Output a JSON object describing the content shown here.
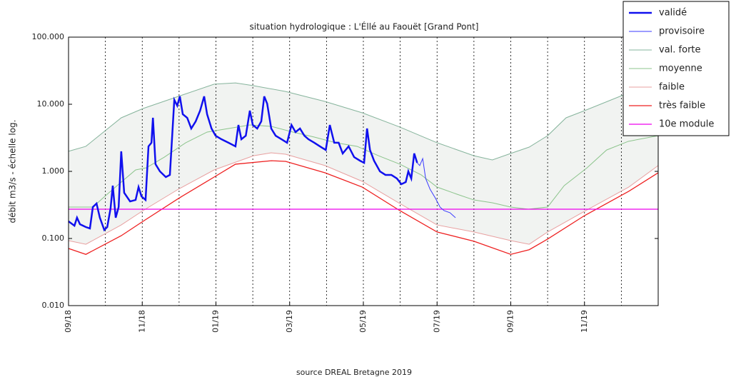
{
  "chart_data": {
    "type": "line",
    "title": "situation hydrologique : L'Éllé au Faouët [Grand Pont]",
    "ylabel": "débit m3/s - échelle log.",
    "source": "source DREAL Bretagne 2019",
    "log_y": true,
    "ylim": [
      0.01,
      100
    ],
    "yticks": [
      {
        "value": 0.01,
        "label": "0.010"
      },
      {
        "value": 0.1,
        "label": "0.100"
      },
      {
        "value": 1,
        "label": "1.000"
      },
      {
        "value": 10,
        "label": "10.000"
      },
      {
        "value": 100,
        "label": "100.000"
      }
    ],
    "xlim": [
      0,
      16
    ],
    "xticks": [
      {
        "value": 0,
        "label": "09/18"
      },
      {
        "value": 2,
        "label": "11/18"
      },
      {
        "value": 4,
        "label": "01/19"
      },
      {
        "value": 6,
        "label": "03/19"
      },
      {
        "value": 8,
        "label": "05/19"
      },
      {
        "value": 10,
        "label": "07/19"
      },
      {
        "value": 12,
        "label": "09/19"
      },
      {
        "value": 14,
        "label": "11/19"
      }
    ],
    "xgrid": [
      1,
      2,
      3,
      4,
      5,
      6,
      7,
      8,
      9,
      10,
      11,
      12,
      13,
      14,
      15
    ],
    "legend": "upper right",
    "series": [
      {
        "name": "validé",
        "color": "#1010ee",
        "width": 2.5,
        "x": [
          0,
          0.16,
          0.23,
          0.31,
          0.47,
          0.58,
          0.66,
          0.76,
          0.85,
          0.97,
          1.05,
          1.14,
          1.2,
          1.28,
          1.36,
          1.43,
          1.51,
          1.67,
          1.82,
          1.9,
          1.98,
          2.09,
          2.17,
          2.25,
          2.29,
          2.36,
          2.48,
          2.64,
          2.75,
          2.87,
          2.95,
          3.02,
          3.1,
          3.22,
          3.33,
          3.45,
          3.57,
          3.68,
          3.76,
          3.88,
          3.99,
          4.15,
          4.34,
          4.53,
          4.61,
          4.69,
          4.81,
          4.92,
          5.0,
          5.12,
          5.23,
          5.31,
          5.39,
          5.5,
          5.62,
          5.78,
          5.93,
          6.05,
          6.16,
          6.28,
          6.4,
          6.51,
          6.67,
          6.82,
          6.98,
          7.09,
          7.21,
          7.33,
          7.44,
          7.6,
          7.75,
          7.91,
          8.02,
          8.1,
          8.18,
          8.29,
          8.45,
          8.6,
          8.76,
          8.91,
          9.03,
          9.15,
          9.22,
          9.3,
          9.38,
          9.46
        ],
        "values": [
          0.18,
          0.155,
          0.204,
          0.163,
          0.148,
          0.141,
          0.294,
          0.332,
          0.204,
          0.134,
          0.148,
          0.28,
          0.613,
          0.204,
          0.294,
          1.99,
          0.48,
          0.357,
          0.375,
          0.583,
          0.424,
          0.375,
          2.36,
          2.67,
          6.28,
          1.28,
          1.0,
          0.822,
          0.886,
          11.6,
          9.52,
          13.1,
          7.1,
          6.28,
          4.35,
          5.55,
          8.02,
          13.1,
          7.1,
          4.35,
          3.4,
          3.01,
          2.67,
          2.36,
          4.91,
          3.01,
          3.4,
          8.02,
          4.91,
          4.35,
          5.55,
          13.1,
          10.2,
          4.35,
          3.4,
          3.01,
          2.67,
          4.91,
          3.85,
          4.35,
          3.4,
          3.01,
          2.67,
          2.36,
          2.08,
          4.91,
          2.67,
          2.67,
          1.85,
          2.36,
          1.63,
          1.44,
          1.34,
          4.35,
          2.08,
          1.44,
          1.0,
          0.886,
          0.886,
          0.783,
          0.644,
          0.692,
          1.0,
          0.783,
          1.85,
          1.34
        ]
      },
      {
        "name": "provisoire",
        "color": "#3a3aff",
        "width": 1,
        "x": [
          9.46,
          9.53,
          9.61,
          9.69,
          9.81,
          9.96,
          10.08,
          10.19,
          10.35,
          10.5
        ],
        "values": [
          1.34,
          1.22,
          1.55,
          0.783,
          0.542,
          0.394,
          0.294,
          0.26,
          0.242,
          0.204
        ]
      },
      {
        "name": "val. forte",
        "color": "#86b49c",
        "width": 1,
        "x": [
          0,
          0.47,
          1.43,
          2.02,
          2.98,
          3.95,
          4.53,
          5.02,
          5.89,
          6.96,
          7.97,
          8.99,
          10.0,
          11.0,
          11.5,
          12.0,
          12.5,
          13.0,
          13.5,
          14.0,
          15.2,
          16.0
        ],
        "values": [
          1.99,
          2.36,
          6.28,
          8.63,
          13.1,
          19.9,
          20.8,
          18.9,
          15.5,
          11.0,
          7.46,
          4.57,
          2.67,
          1.71,
          1.48,
          1.85,
          2.3,
          3.4,
          6.28,
          8.02,
          14.8,
          19.9
        ]
      },
      {
        "name": "moyenne",
        "color": "#8cc48c",
        "width": 1,
        "x": [
          0,
          0.66,
          1.05,
          1.43,
          1.82,
          2.11,
          2.6,
          3.18,
          3.76,
          4.34,
          4.92,
          5.5,
          6.09,
          6.67,
          7.25,
          7.83,
          8.41,
          8.99,
          9.57,
          10.0,
          10.54,
          11.0,
          11.5,
          12.0,
          12.48,
          13.0,
          13.45,
          14.07,
          14.6,
          15.19,
          16.0
        ],
        "values": [
          0.294,
          0.294,
          0.457,
          0.692,
          1.05,
          1.13,
          1.63,
          2.67,
          3.85,
          4.35,
          4.91,
          4.68,
          3.85,
          3.24,
          2.67,
          2.36,
          1.71,
          1.28,
          0.886,
          0.583,
          0.457,
          0.375,
          0.34,
          0.294,
          0.273,
          0.294,
          0.613,
          1.13,
          2.08,
          2.8,
          3.4
        ]
      },
      {
        "name": "faible",
        "color": "#e8a0a0",
        "width": 1,
        "x": [
          0,
          0.47,
          1.43,
          2.02,
          2.98,
          3.95,
          5.02,
          5.5,
          5.89,
          6.96,
          7.97,
          8.99,
          10.0,
          11.0,
          12.0,
          12.5,
          13.0,
          14.0,
          15.2,
          16.0
        ],
        "values": [
          0.093,
          0.082,
          0.159,
          0.26,
          0.542,
          1.05,
          1.71,
          1.89,
          1.8,
          1.22,
          0.71,
          0.332,
          0.159,
          0.125,
          0.093,
          0.082,
          0.125,
          0.254,
          0.583,
          1.22
        ]
      },
      {
        "name": "très faible",
        "color": "#ee2020",
        "width": 1.3,
        "x": [
          0,
          0.47,
          1.43,
          2.02,
          2.98,
          3.95,
          4.53,
          5.5,
          5.89,
          6.96,
          7.97,
          8.99,
          10.0,
          11.0,
          12.0,
          12.5,
          13.0,
          14.0,
          15.2,
          16.0
        ],
        "values": [
          0.071,
          0.058,
          0.11,
          0.18,
          0.394,
          0.822,
          1.28,
          1.44,
          1.41,
          0.953,
          0.583,
          0.26,
          0.125,
          0.091,
          0.058,
          0.068,
          0.098,
          0.219,
          0.504,
          0.953
        ]
      },
      {
        "name": "10e module",
        "color": "#ee00ee",
        "width": 1.3,
        "x": [
          0,
          16
        ],
        "values": [
          0.273,
          0.273
        ]
      }
    ]
  }
}
